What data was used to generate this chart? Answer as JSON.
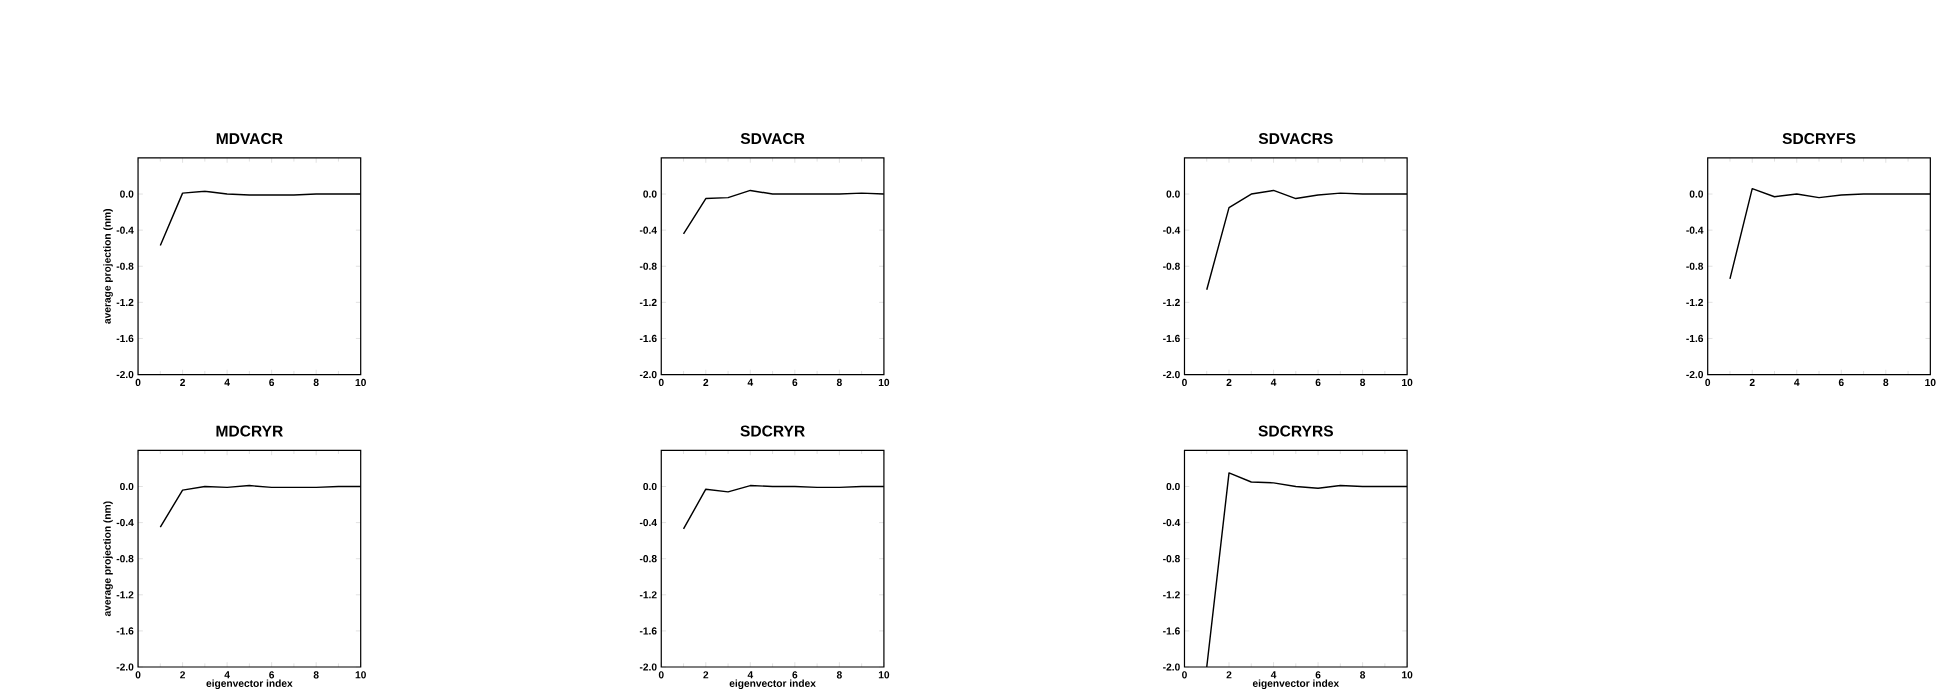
{
  "chart_data": [
    {
      "type": "line",
      "title": "MDVACR",
      "ylabel": "average projection (nm)",
      "x": [
        1,
        2,
        3,
        4,
        5,
        6,
        7,
        8,
        9,
        10
      ],
      "xlim": [
        0,
        10
      ],
      "xticks": [
        0,
        2,
        4,
        6,
        8,
        10
      ],
      "ylim": [
        -2.0,
        0.4
      ],
      "yticks": [
        {
          "value": -2.0,
          "label": "-2.0"
        },
        {
          "value": -1.6,
          "label": "-1.6"
        },
        {
          "value": -1.2,
          "label": "-1.2"
        },
        {
          "value": -0.8,
          "label": "-0.8"
        },
        {
          "value": -0.4,
          "label": "-0.4"
        },
        {
          "value": 0,
          "label": "0.0"
        }
      ],
      "series": [
        {
          "color": "#000000",
          "values": [
            -0.57,
            0.01,
            0.03,
            0.0,
            -0.01,
            -0.01,
            -0.01,
            0.0,
            0.0,
            0.0
          ]
        }
      ]
    },
    {
      "type": "line",
      "title": "SDVACR",
      "x": [
        1,
        2,
        3,
        4,
        5,
        6,
        7,
        8,
        9,
        10
      ],
      "xlim": [
        0,
        10
      ],
      "xticks": [
        0,
        2,
        4,
        6,
        8,
        10
      ],
      "ylim": [
        -2.0,
        0.4
      ],
      "yticks": [
        {
          "value": -2.0,
          "label": "-2.0"
        },
        {
          "value": -1.6,
          "label": "-1.6"
        },
        {
          "value": -1.2,
          "label": "-1.2"
        },
        {
          "value": -0.8,
          "label": "-0.8"
        },
        {
          "value": -0.4,
          "label": "-0.4"
        },
        {
          "value": 0,
          "label": "0.0"
        }
      ],
      "series": [
        {
          "color": "#000000",
          "values": [
            -0.44,
            -0.05,
            -0.04,
            0.04,
            0.0,
            0.0,
            0.0,
            0.0,
            0.01,
            0.0
          ]
        }
      ]
    },
    {
      "type": "line",
      "title": "SDVACRS",
      "x": [
        1,
        2,
        3,
        4,
        5,
        6,
        7,
        8,
        9,
        10
      ],
      "xlim": [
        0,
        10
      ],
      "xticks": [
        0,
        2,
        4,
        6,
        8,
        10
      ],
      "ylim": [
        -2.0,
        0.4
      ],
      "yticks": [
        {
          "value": -2.0,
          "label": "-2.0"
        },
        {
          "value": -1.6,
          "label": "-1.6"
        },
        {
          "value": -1.2,
          "label": "-1.2"
        },
        {
          "value": -0.8,
          "label": "-0.8"
        },
        {
          "value": -0.4,
          "label": "-0.4"
        },
        {
          "value": 0,
          "label": "0.0"
        }
      ],
      "series": [
        {
          "color": "#000000",
          "values": [
            -1.06,
            -0.15,
            0.0,
            0.04,
            -0.05,
            -0.01,
            0.01,
            0.0,
            0.0,
            0.0
          ]
        }
      ]
    },
    {
      "type": "line",
      "title": "SDCRYFS",
      "x": [
        1,
        2,
        3,
        4,
        5,
        6,
        7,
        8,
        9,
        10
      ],
      "xlim": [
        0,
        10
      ],
      "xticks": [
        0,
        2,
        4,
        6,
        8,
        10
      ],
      "ylim": [
        -2.0,
        0.4
      ],
      "yticks": [
        {
          "value": -2.0,
          "label": "-2.0"
        },
        {
          "value": -1.6,
          "label": "-1.6"
        },
        {
          "value": -1.2,
          "label": "-1.2"
        },
        {
          "value": -0.8,
          "label": "-0.8"
        },
        {
          "value": -0.4,
          "label": "-0.4"
        },
        {
          "value": 0,
          "label": "0.0"
        }
      ],
      "series": [
        {
          "color": "#000000",
          "values": [
            -0.94,
            0.06,
            -0.03,
            0.0,
            -0.04,
            -0.01,
            0.0,
            0.0,
            0.0,
            0.0
          ]
        }
      ]
    },
    {
      "type": "line",
      "title": "MDCRYR",
      "xlabel": "eigenvector index",
      "ylabel": "average projection (nm)",
      "x": [
        1,
        2,
        3,
        4,
        5,
        6,
        7,
        8,
        9,
        10
      ],
      "xlim": [
        0,
        10
      ],
      "xticks": [
        0,
        2,
        4,
        6,
        8,
        10
      ],
      "ylim": [
        -2.0,
        0.4
      ],
      "yticks": [
        {
          "value": -2.0,
          "label": "-2.0"
        },
        {
          "value": -1.6,
          "label": "-1.6"
        },
        {
          "value": -1.2,
          "label": "-1.2"
        },
        {
          "value": -0.8,
          "label": "-0.8"
        },
        {
          "value": -0.4,
          "label": "-0.4"
        },
        {
          "value": 0,
          "label": "0.0"
        }
      ],
      "series": [
        {
          "color": "#000000",
          "values": [
            -0.45,
            -0.04,
            0.0,
            -0.01,
            0.01,
            -0.01,
            -0.01,
            -0.01,
            0.0,
            0.0
          ]
        }
      ]
    },
    {
      "type": "line",
      "title": "SDCRYR",
      "xlabel": "eigenvector index",
      "x": [
        1,
        2,
        3,
        4,
        5,
        6,
        7,
        8,
        9,
        10
      ],
      "xlim": [
        0,
        10
      ],
      "xticks": [
        0,
        2,
        4,
        6,
        8,
        10
      ],
      "ylim": [
        -2.0,
        0.4
      ],
      "yticks": [
        {
          "value": -2.0,
          "label": "-2.0"
        },
        {
          "value": -1.6,
          "label": "-1.6"
        },
        {
          "value": -1.2,
          "label": "-1.2"
        },
        {
          "value": -0.8,
          "label": "-0.8"
        },
        {
          "value": -0.4,
          "label": "-0.4"
        },
        {
          "value": 0,
          "label": "0.0"
        }
      ],
      "series": [
        {
          "color": "#000000",
          "values": [
            -0.47,
            -0.03,
            -0.06,
            0.01,
            0.0,
            0.0,
            -0.01,
            -0.01,
            0.0,
            0.0
          ]
        }
      ]
    },
    {
      "type": "line",
      "title": "SDCRYRS",
      "xlabel": "eigenvector index",
      "x": [
        1,
        2,
        3,
        4,
        5,
        6,
        7,
        8,
        9,
        10
      ],
      "xlim": [
        0,
        10
      ],
      "xticks": [
        0,
        2,
        4,
        6,
        8,
        10
      ],
      "ylim": [
        -2.0,
        0.4
      ],
      "yticks": [
        {
          "value": -2.0,
          "label": "-2.0"
        },
        {
          "value": -1.6,
          "label": "-1.6"
        },
        {
          "value": -1.2,
          "label": "-1.2"
        },
        {
          "value": -0.8,
          "label": "-0.8"
        },
        {
          "value": -0.4,
          "label": "-0.4"
        },
        {
          "value": 0,
          "label": "0.0"
        }
      ],
      "series": [
        {
          "color": "#000000",
          "values": [
            -2.0,
            0.15,
            0.05,
            0.04,
            0.0,
            -0.02,
            0.01,
            0.0,
            0.0,
            0.0
          ]
        }
      ]
    }
  ]
}
